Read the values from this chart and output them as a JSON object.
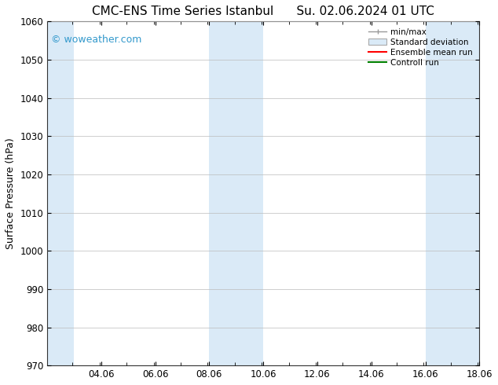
{
  "title_left": "CMC-ENS Time Series Istanbul",
  "title_right": "Su. 02.06.2024 01 UTC",
  "ylabel": "Surface Pressure (hPa)",
  "ylim": [
    970,
    1060
  ],
  "yticks": [
    970,
    980,
    990,
    1000,
    1010,
    1020,
    1030,
    1040,
    1050,
    1060
  ],
  "xlim_start": 2.06,
  "xlim_end": 18.06,
  "xtick_labels": [
    "04.06",
    "06.06",
    "08.06",
    "10.06",
    "12.06",
    "14.06",
    "16.06",
    "18.06"
  ],
  "xtick_positions": [
    4.06,
    6.06,
    8.06,
    10.06,
    12.06,
    14.06,
    16.06,
    18.06
  ],
  "shaded_bands": [
    {
      "x_start": 2.06,
      "x_end": 3.06,
      "color": "#daeaf7"
    },
    {
      "x_start": 8.06,
      "x_end": 10.06,
      "color": "#daeaf7"
    },
    {
      "x_start": 16.06,
      "x_end": 18.06,
      "color": "#daeaf7"
    }
  ],
  "watermark": "© woweather.com",
  "watermark_color": "#3399cc",
  "legend_labels": [
    "min/max",
    "Standard deviation",
    "Ensemble mean run",
    "Controll run"
  ],
  "bg_color": "#ffffff",
  "plot_bg_color": "#ffffff",
  "grid_color": "#bbbbbb",
  "title_fontsize": 11,
  "label_fontsize": 9,
  "tick_fontsize": 8.5
}
